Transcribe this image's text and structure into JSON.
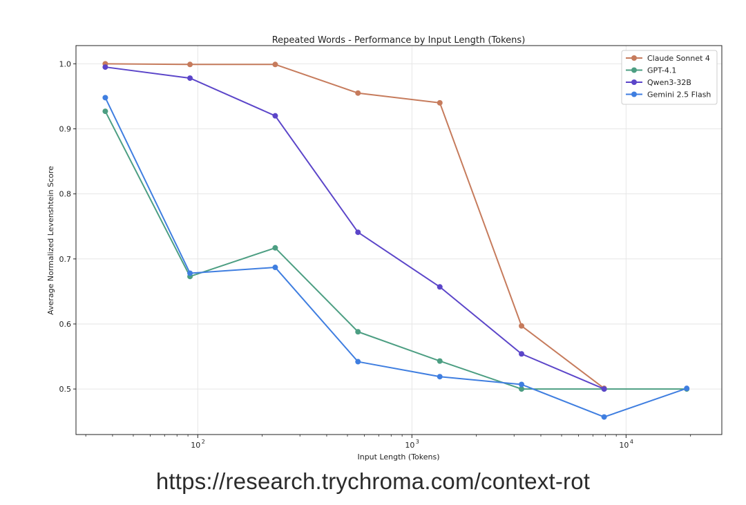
{
  "chart_data": {
    "type": "line",
    "title": "Repeated Words - Performance by Input Length (Tokens)",
    "xlabel": "Input Length (Tokens)",
    "ylabel": "Average Normalized Levenshtein Score",
    "x_scale": "log",
    "xlim": [
      27,
      28000
    ],
    "ylim": [
      0.43,
      1.028
    ],
    "grid": true,
    "legend_position": "top-right",
    "x_ticks": [
      {
        "value": 100,
        "base": "10",
        "exp": "2"
      },
      {
        "value": 1000,
        "base": "10",
        "exp": "3"
      },
      {
        "value": 10000,
        "base": "10",
        "exp": "4"
      }
    ],
    "y_ticks": [
      {
        "value": 0.5,
        "label": "0.5"
      },
      {
        "value": 0.6,
        "label": "0.6"
      },
      {
        "value": 0.7,
        "label": "0.7"
      },
      {
        "value": 0.8,
        "label": "0.8"
      },
      {
        "value": 0.9,
        "label": "0.9"
      },
      {
        "value": 1.0,
        "label": "1.0"
      }
    ],
    "x": [
      37,
      92,
      230,
      560,
      1350,
      3250,
      7900,
      19200
    ],
    "series": [
      {
        "name": "Claude Sonnet 4",
        "color": "#c67b5c",
        "values": [
          1.0,
          0.999,
          0.999,
          0.955,
          0.94,
          0.597,
          0.501,
          null
        ]
      },
      {
        "name": "GPT-4.1",
        "color": "#4c9e82",
        "values": [
          0.927,
          0.673,
          0.717,
          0.588,
          0.543,
          0.5,
          0.5,
          0.5
        ]
      },
      {
        "name": "Qwen3-32B",
        "color": "#5b45c9",
        "values": [
          0.995,
          0.978,
          0.92,
          0.741,
          0.657,
          0.554,
          0.5,
          null
        ]
      },
      {
        "name": "Gemini 2.5 Flash",
        "color": "#3f7ee0",
        "values": [
          0.948,
          0.678,
          0.687,
          0.542,
          0.519,
          0.507,
          0.457,
          0.501
        ]
      }
    ]
  },
  "caption": "https://research.trychroma.com/context-rot"
}
